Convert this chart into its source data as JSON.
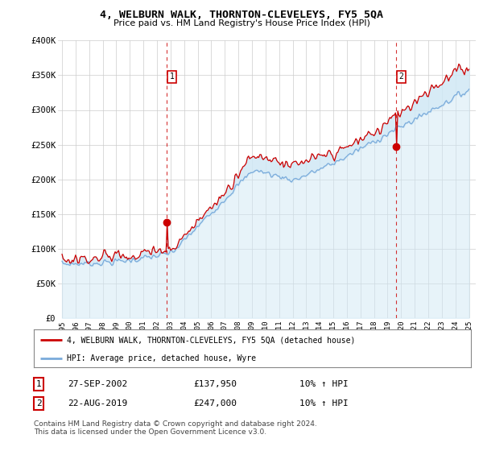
{
  "title": "4, WELBURN WALK, THORNTON-CLEVELEYS, FY5 5QA",
  "subtitle": "Price paid vs. HM Land Registry's House Price Index (HPI)",
  "ylim": [
    0,
    400000
  ],
  "yticks": [
    0,
    50000,
    100000,
    150000,
    200000,
    250000,
    300000,
    350000,
    400000
  ],
  "ytick_labels": [
    "£0",
    "£50K",
    "£100K",
    "£150K",
    "£200K",
    "£250K",
    "£300K",
    "£350K",
    "£400K"
  ],
  "x_start_year": 1995,
  "x_end_year": 2025,
  "hpi_color": "#7aabdb",
  "price_color": "#cc0000",
  "fill_color": "#d0e8f5",
  "sale1_year": 2002.74,
  "sale1_price": 137950,
  "sale2_year": 2019.64,
  "sale2_price": 247000,
  "legend_line1": "4, WELBURN WALK, THORNTON-CLEVELEYS, FY5 5QA (detached house)",
  "legend_line2": "HPI: Average price, detached house, Wyre",
  "table_row1": [
    "1",
    "27-SEP-2002",
    "£137,950",
    "10% ↑ HPI"
  ],
  "table_row2": [
    "2",
    "22-AUG-2019",
    "£247,000",
    "10% ↑ HPI"
  ],
  "footnote": "Contains HM Land Registry data © Crown copyright and database right 2024.\nThis data is licensed under the Open Government Licence v3.0.",
  "bg_color": "#ffffff",
  "grid_color": "#cccccc",
  "box_color": "#cc0000"
}
